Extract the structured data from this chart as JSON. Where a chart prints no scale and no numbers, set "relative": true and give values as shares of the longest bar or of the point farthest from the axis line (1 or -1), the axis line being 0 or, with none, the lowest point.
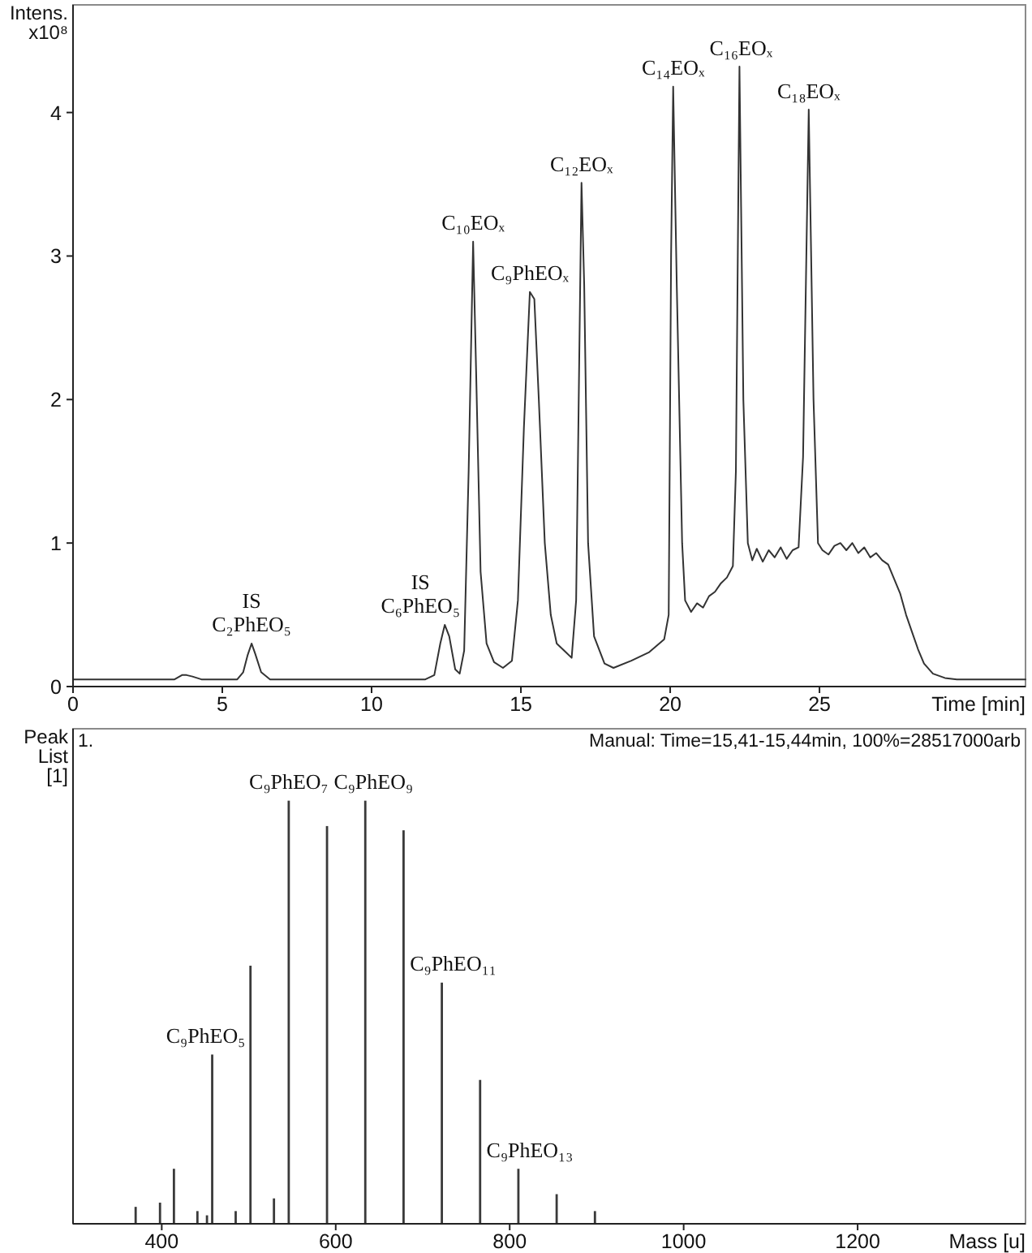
{
  "chart_data": [
    {
      "type": "line",
      "xlabel": "Time [min]",
      "ylabel": "Intens.\nx10⁸",
      "color": "#333333",
      "xlim": [
        0,
        31.9
      ],
      "ylim": [
        0,
        4.75
      ],
      "xticks": [
        0,
        5,
        10,
        15,
        20,
        25
      ],
      "yticks": [
        0,
        1,
        2,
        3,
        4
      ],
      "x": [
        0,
        3.4,
        3.65,
        3.8,
        4.0,
        4.3,
        5.5,
        5.7,
        5.85,
        5.98,
        6.1,
        6.3,
        6.6,
        11.8,
        12.1,
        12.3,
        12.45,
        12.6,
        12.8,
        12.95,
        13.1,
        13.25,
        13.4,
        13.5,
        13.65,
        13.85,
        14.1,
        14.4,
        14.7,
        14.9,
        15.1,
        15.3,
        15.45,
        15.6,
        15.8,
        16.0,
        16.2,
        16.5,
        16.7,
        16.85,
        17.03,
        17.12,
        17.25,
        17.45,
        17.8,
        18.1,
        18.7,
        19.3,
        19.8,
        19.95,
        20.03,
        20.1,
        20.22,
        20.4,
        20.5,
        20.7,
        20.9,
        21.1,
        21.3,
        21.5,
        21.7,
        21.9,
        22.1,
        22.2,
        22.32,
        22.45,
        22.6,
        22.75,
        22.9,
        23.1,
        23.3,
        23.5,
        23.7,
        23.9,
        24.1,
        24.3,
        24.45,
        24.64,
        24.8,
        24.95,
        25.1,
        25.3,
        25.5,
        25.7,
        25.9,
        26.1,
        26.3,
        26.5,
        26.7,
        26.9,
        27.1,
        27.3,
        27.5,
        27.7,
        27.9,
        28.1,
        28.3,
        28.5,
        28.8,
        29.2,
        29.6,
        31.9
      ],
      "values": [
        0.05,
        0.05,
        0.08,
        0.08,
        0.07,
        0.05,
        0.05,
        0.1,
        0.22,
        0.3,
        0.23,
        0.1,
        0.05,
        0.05,
        0.08,
        0.3,
        0.43,
        0.35,
        0.12,
        0.09,
        0.25,
        1.5,
        3.1,
        2.2,
        0.8,
        0.3,
        0.17,
        0.13,
        0.18,
        0.6,
        1.8,
        2.75,
        2.7,
        2.0,
        1.0,
        0.5,
        0.3,
        0.24,
        0.2,
        0.6,
        3.51,
        2.8,
        1.0,
        0.35,
        0.16,
        0.13,
        0.18,
        0.24,
        0.33,
        0.5,
        3.0,
        4.18,
        2.8,
        1.0,
        0.6,
        0.52,
        0.58,
        0.55,
        0.63,
        0.66,
        0.72,
        0.76,
        0.84,
        1.5,
        4.32,
        2.0,
        1.0,
        0.88,
        0.96,
        0.87,
        0.95,
        0.9,
        0.97,
        0.89,
        0.95,
        0.97,
        1.6,
        4.02,
        2.0,
        1.0,
        0.95,
        0.92,
        0.98,
        1.0,
        0.95,
        1.0,
        0.93,
        0.97,
        0.9,
        0.93,
        0.88,
        0.85,
        0.75,
        0.65,
        0.5,
        0.38,
        0.26,
        0.16,
        0.09,
        0.06,
        0.05,
        0.05
      ],
      "annotations": [
        {
          "text": "IS\nC₂PhEO₅",
          "x": 5.98,
          "y": 0.3
        },
        {
          "text": "IS\nC₆PhEO₅",
          "x": 12.45,
          "y": 0.43
        },
        {
          "text": "C₁₀EOₓ",
          "x": 13.4,
          "y": 3.1
        },
        {
          "text": "C₉PhEOₓ",
          "x": 15.3,
          "y": 2.75
        },
        {
          "text": "C₁₂EOₓ",
          "x": 17.03,
          "y": 3.51
        },
        {
          "text": "C₁₄EOₓ",
          "x": 20.1,
          "y": 4.18
        },
        {
          "text": "C₁₆EOₓ",
          "x": 22.32,
          "y": 4.32
        },
        {
          "text": "C₁₈EOₓ",
          "x": 24.64,
          "y": 4.02
        }
      ]
    },
    {
      "type": "bar",
      "relative": true,
      "xlabel": "Mass [u]",
      "ylabel": "Peak\nList\n[1]",
      "color": "#3a3a3a",
      "xlim": [
        298,
        1393
      ],
      "xticks": [
        400,
        600,
        800,
        1000,
        1200
      ],
      "x": [
        370,
        398,
        414,
        441,
        452,
        458,
        485,
        502,
        529,
        546,
        590,
        634,
        678,
        722,
        766,
        810,
        854,
        898
      ],
      "values": [
        0.04,
        0.05,
        0.13,
        0.03,
        0.02,
        0.4,
        0.03,
        0.61,
        0.06,
        1,
        0.94,
        1,
        0.93,
        0.57,
        0.34,
        0.13,
        0.07,
        0.03
      ],
      "annotations": [
        "1.",
        "Manual: Time=15,41-15,44min, 100%=28517000arb",
        {
          "text": "C₉PhEO₅",
          "x": 458,
          "y": 0.4
        },
        {
          "text": "C₉PhEO₇",
          "x": 546,
          "y": 1
        },
        {
          "text": "C₉PhEO₉",
          "x": 634,
          "y": 1
        },
        {
          "text": "C₉PhEO₁₁",
          "x": 722,
          "y": 0.57
        },
        {
          "text": "C₉PhEO₁₃",
          "x": 810,
          "y": 0.13
        }
      ]
    }
  ]
}
